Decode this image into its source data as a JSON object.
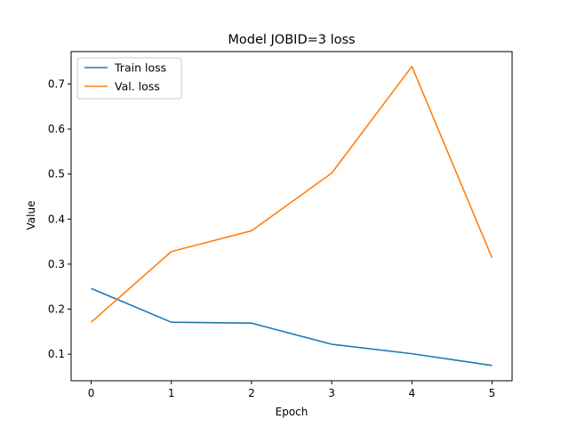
{
  "chart_data": {
    "type": "line",
    "title": "Model JOBID=3 loss",
    "xlabel": "Epoch",
    "ylabel": "Value",
    "x": [
      0,
      1,
      2,
      3,
      4,
      5
    ],
    "xlim": [
      -0.25,
      5.25
    ],
    "ylim": [
      0.041,
      0.772
    ],
    "xticks": [
      0,
      1,
      2,
      3,
      4,
      5
    ],
    "yticks": [
      0.1,
      0.2,
      0.3,
      0.4,
      0.5,
      0.6,
      0.7
    ],
    "grid": false,
    "legend_position": "top-left",
    "series": [
      {
        "name": "Train loss",
        "color": "#1f77b4",
        "values": [
          0.246,
          0.171,
          0.169,
          0.122,
          0.101,
          0.075
        ]
      },
      {
        "name": "Val. loss",
        "color": "#ff7f0e",
        "values": [
          0.171,
          0.328,
          0.374,
          0.502,
          0.739,
          0.314
        ]
      }
    ]
  }
}
